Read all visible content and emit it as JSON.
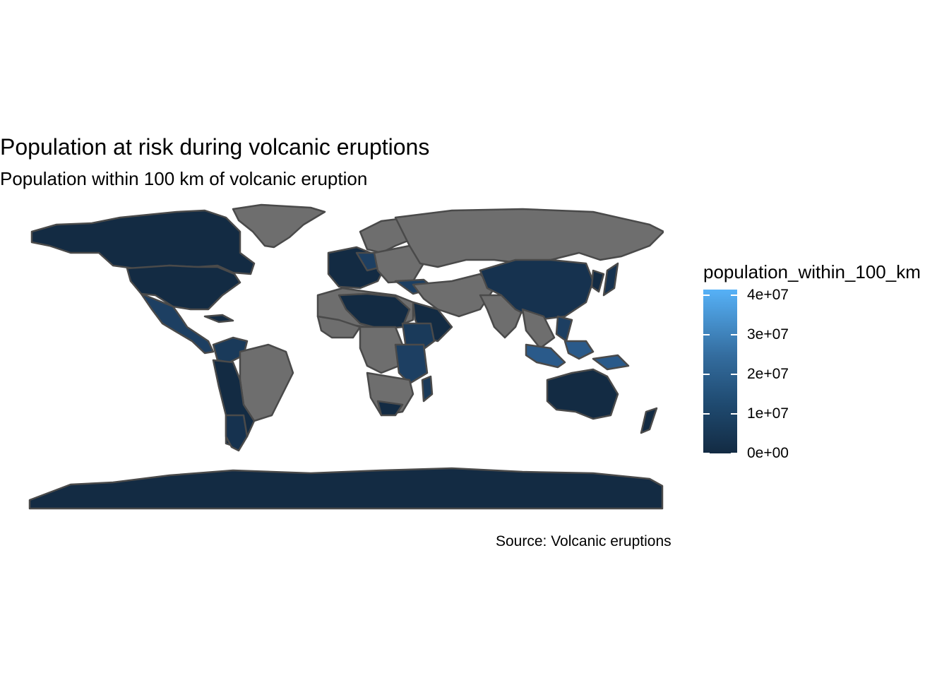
{
  "title": "Population at risk during volcanic eruptions",
  "subtitle": "Population within 100 km of volcanic eruption",
  "caption": "Source: Volcanic eruptions",
  "legend": {
    "title": "population_within_100_km",
    "ticks": [
      "0e+00",
      "1e+07",
      "2e+07",
      "3e+07",
      "4e+07"
    ],
    "low_color": "#132b43",
    "high_color": "#56b1f7"
  },
  "colors": {
    "no_data": "#6e6e6e",
    "border": "#4a4a4a",
    "low": "#132b43",
    "mid": "#1f4a70",
    "high": "#56b1f7"
  }
}
